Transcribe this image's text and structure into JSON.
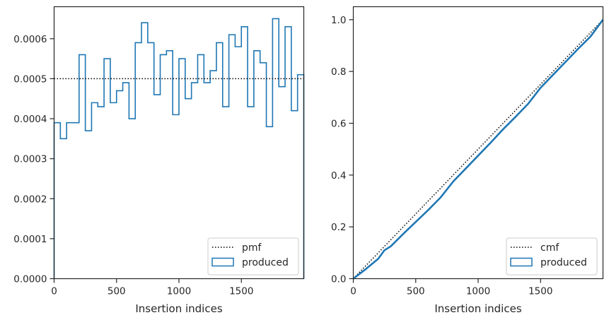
{
  "chart_data": [
    {
      "type": "histogram-step",
      "xlabel": "Insertion indices",
      "xlim": [
        0,
        2000
      ],
      "ylim": [
        0,
        0.00068
      ],
      "xticks": [
        0,
        500,
        1000,
        1500
      ],
      "yticks": [
        0,
        0.0001,
        0.0002,
        0.0003,
        0.0004,
        0.0005,
        0.0006
      ],
      "ytick_labels": [
        "0.0000",
        "0.0001",
        "0.0002",
        "0.0003",
        "0.0004",
        "0.0005",
        "0.0006"
      ],
      "bin_edges": [
        0,
        50,
        100,
        150,
        200,
        250,
        300,
        350,
        400,
        450,
        500,
        550,
        600,
        650,
        700,
        750,
        800,
        850,
        900,
        950,
        1000,
        1050,
        1100,
        1150,
        1200,
        1250,
        1300,
        1350,
        1400,
        1450,
        1500,
        1550,
        1600,
        1650,
        1700,
        1750,
        1800,
        1850,
        1900,
        1950,
        2000
      ],
      "series": [
        {
          "name": "produced",
          "style": "step-histogram",
          "color": "#1f77b4",
          "values": [
            0.00039,
            0.00035,
            0.00039,
            0.00039,
            0.00056,
            0.00037,
            0.00044,
            0.00043,
            0.00055,
            0.00044,
            0.00047,
            0.00049,
            0.0004,
            0.00059,
            0.00064,
            0.00059,
            0.00046,
            0.00056,
            0.00057,
            0.00041,
            0.00055,
            0.00045,
            0.00049,
            0.00056,
            0.00049,
            0.00052,
            0.00059,
            0.00043,
            0.00061,
            0.00058,
            0.00063,
            0.00043,
            0.00057,
            0.00054,
            0.00038,
            0.00065,
            0.00048,
            0.00063,
            0.00042,
            0.00051
          ]
        },
        {
          "name": "pmf",
          "style": "dotted-line",
          "color": "#000000",
          "value": 0.0005
        }
      ],
      "legend": {
        "placement": "lower-right",
        "entries": [
          "pmf",
          "produced"
        ]
      }
    },
    {
      "type": "line",
      "xlabel": "Insertion indices",
      "xlim": [
        0,
        2000
      ],
      "ylim": [
        0,
        1.05
      ],
      "xticks": [
        0,
        500,
        1000,
        1500
      ],
      "yticks": [
        0,
        0.2,
        0.4,
        0.6,
        0.8,
        1.0
      ],
      "ytick_labels": [
        "0.0",
        "0.2",
        "0.4",
        "0.6",
        "0.8",
        "1.0"
      ],
      "series": [
        {
          "name": "produced",
          "style": "step-cumulative",
          "color": "#1f77b4",
          "x": [
            0,
            100,
            200,
            250,
            300,
            400,
            500,
            600,
            700,
            800,
            900,
            1000,
            1100,
            1200,
            1300,
            1400,
            1500,
            1600,
            1700,
            1800,
            1900,
            2000
          ],
          "y": [
            0,
            0.037,
            0.077,
            0.11,
            0.125,
            0.173,
            0.219,
            0.265,
            0.314,
            0.375,
            0.425,
            0.475,
            0.525,
            0.577,
            0.625,
            0.675,
            0.737,
            0.787,
            0.837,
            0.887,
            0.935,
            1.0
          ]
        },
        {
          "name": "cmf",
          "style": "dotted-line",
          "color": "#000000",
          "x": [
            0,
            2000
          ],
          "y": [
            0,
            1.0
          ]
        }
      ],
      "legend": {
        "placement": "lower-right",
        "entries": [
          "cmf",
          "produced"
        ]
      }
    }
  ]
}
